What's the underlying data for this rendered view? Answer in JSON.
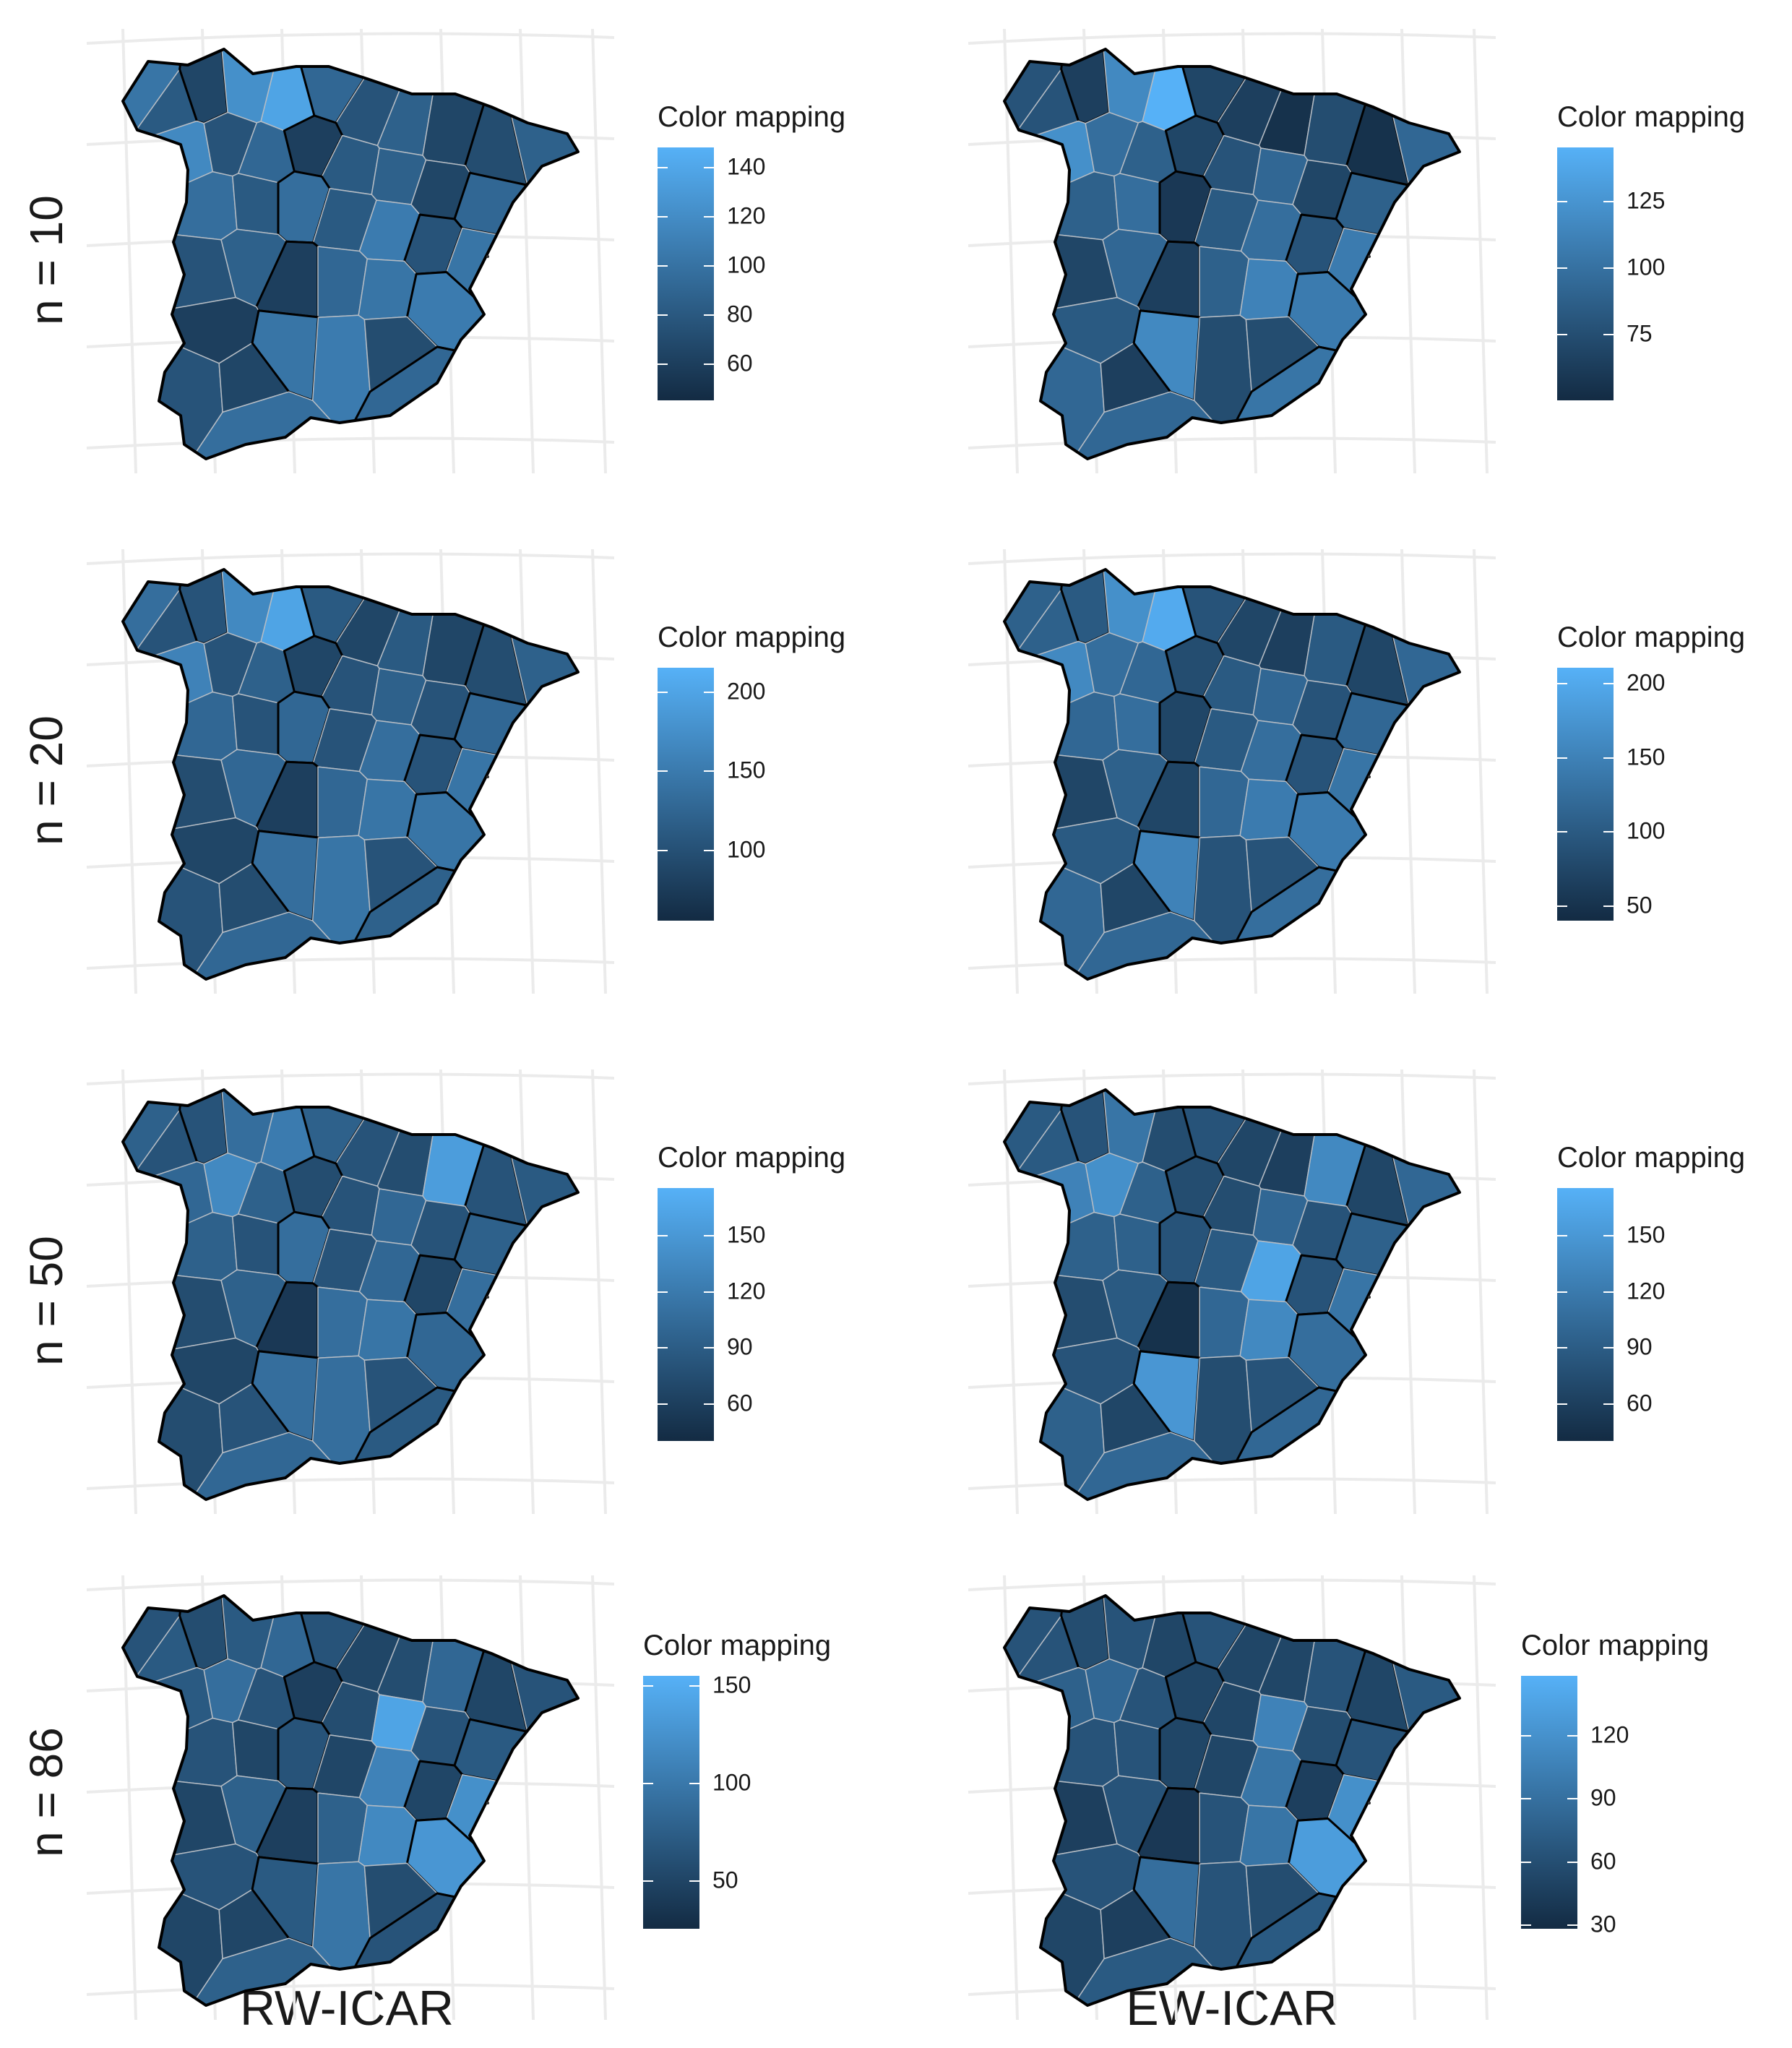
{
  "figure": {
    "row_labels": [
      "n = 10",
      "n = 20",
      "n = 50",
      "n = 86"
    ],
    "column_labels": [
      "RW-ICAR",
      "EW-ICAR"
    ]
  },
  "colors": {
    "low": "#132B43",
    "high": "#56B1F7",
    "border_dark": "#000000",
    "border_light": "#b5bcc4",
    "graticule": "#ebebeb"
  },
  "chart_data": [
    {
      "type": "heatmap",
      "model": "RW-ICAR",
      "n": 10,
      "legend_title": "Color mapping",
      "range": [
        45,
        148
      ],
      "ticks": [
        60,
        80,
        100,
        120,
        140
      ],
      "fill": [
        0.55,
        0.35,
        0.2,
        0.75,
        0.9,
        0.45,
        0.3,
        0.4,
        0.2,
        0.25,
        0.4,
        0.7,
        0.3,
        0.45,
        0.15,
        0.35,
        0.4,
        0.2,
        0.45,
        0.5,
        0.35,
        0.5,
        0.35,
        0.6,
        0.3,
        0.55,
        0.3,
        0.4,
        0.15,
        0.45,
        0.55,
        0.6,
        0.15,
        0.3,
        0.2,
        0.55,
        0.6,
        0.25,
        0.45,
        0.5
      ]
    },
    {
      "type": "heatmap",
      "model": "EW-ICAR",
      "n": 10,
      "legend_title": "Color mapping",
      "range": [
        50,
        145
      ],
      "ticks": [
        75,
        100,
        125
      ],
      "fill": [
        0.3,
        0.3,
        0.15,
        0.7,
        1.0,
        0.2,
        0.15,
        0.05,
        0.25,
        0.05,
        0.45,
        0.75,
        0.5,
        0.4,
        0.2,
        0.3,
        0.45,
        0.2,
        0.4,
        0.4,
        0.5,
        0.1,
        0.35,
        0.5,
        0.3,
        0.6,
        0.2,
        0.45,
        0.15,
        0.4,
        0.65,
        0.6,
        0.35,
        0.45,
        0.15,
        0.7,
        0.25,
        0.25,
        0.55,
        0.45
      ]
    },
    {
      "type": "heatmap",
      "model": "RW-ICAR",
      "n": 20,
      "legend_title": "Color mapping",
      "range": [
        55,
        215
      ],
      "ticks": [
        100,
        150,
        200
      ],
      "fill": [
        0.5,
        0.3,
        0.3,
        0.7,
        0.9,
        0.35,
        0.2,
        0.35,
        0.2,
        0.25,
        0.4,
        0.65,
        0.3,
        0.4,
        0.2,
        0.3,
        0.4,
        0.3,
        0.45,
        0.45,
        0.3,
        0.45,
        0.3,
        0.5,
        0.3,
        0.55,
        0.25,
        0.45,
        0.15,
        0.45,
        0.55,
        0.55,
        0.2,
        0.3,
        0.25,
        0.5,
        0.55,
        0.3,
        0.4,
        0.45
      ]
    },
    {
      "type": "heatmap",
      "model": "EW-ICAR",
      "n": 20,
      "legend_title": "Color mapping",
      "range": [
        40,
        210
      ],
      "ticks": [
        50,
        100,
        150,
        200
      ],
      "fill": [
        0.4,
        0.4,
        0.35,
        0.75,
        0.95,
        0.3,
        0.2,
        0.15,
        0.35,
        0.2,
        0.45,
        0.7,
        0.5,
        0.45,
        0.25,
        0.35,
        0.45,
        0.3,
        0.45,
        0.45,
        0.5,
        0.2,
        0.35,
        0.5,
        0.3,
        0.55,
        0.2,
        0.4,
        0.2,
        0.45,
        0.6,
        0.6,
        0.35,
        0.45,
        0.2,
        0.65,
        0.3,
        0.3,
        0.5,
        0.45
      ]
    },
    {
      "type": "heatmap",
      "model": "RW-ICAR",
      "n": 50,
      "legend_title": "Color mapping",
      "range": [
        40,
        175
      ],
      "ticks": [
        60,
        90,
        120,
        150
      ],
      "fill": [
        0.4,
        0.3,
        0.3,
        0.5,
        0.6,
        0.4,
        0.3,
        0.25,
        0.85,
        0.3,
        0.35,
        0.45,
        0.7,
        0.4,
        0.25,
        0.3,
        0.45,
        0.3,
        0.4,
        0.4,
        0.3,
        0.5,
        0.3,
        0.45,
        0.2,
        0.5,
        0.25,
        0.4,
        0.1,
        0.5,
        0.55,
        0.45,
        0.2,
        0.25,
        0.3,
        0.5,
        0.5,
        0.3,
        0.35,
        0.45
      ]
    },
    {
      "type": "heatmap",
      "model": "EW-ICAR",
      "n": 50,
      "legend_title": "Color mapping",
      "range": [
        40,
        175
      ],
      "ticks": [
        60,
        90,
        120,
        150
      ],
      "fill": [
        0.35,
        0.35,
        0.3,
        0.55,
        0.25,
        0.3,
        0.2,
        0.15,
        0.7,
        0.2,
        0.45,
        0.65,
        0.75,
        0.4,
        0.25,
        0.25,
        0.45,
        0.3,
        0.4,
        0.4,
        0.4,
        0.3,
        0.35,
        0.9,
        0.3,
        0.55,
        0.25,
        0.35,
        0.05,
        0.45,
        0.7,
        0.5,
        0.3,
        0.4,
        0.2,
        0.8,
        0.25,
        0.3,
        0.45,
        0.45
      ]
    },
    {
      "type": "heatmap",
      "model": "RW-ICAR",
      "n": 86,
      "legend_title": "Color mapping",
      "range": [
        25,
        155
      ],
      "ticks": [
        50,
        100,
        150
      ],
      "fill": [
        0.3,
        0.35,
        0.25,
        0.35,
        0.45,
        0.3,
        0.2,
        0.25,
        0.45,
        0.2,
        0.3,
        0.35,
        0.5,
        0.3,
        0.15,
        0.25,
        0.9,
        0.3,
        0.35,
        0.3,
        0.2,
        0.3,
        0.2,
        0.65,
        0.2,
        0.75,
        0.2,
        0.4,
        0.15,
        0.4,
        0.7,
        0.8,
        0.3,
        0.2,
        0.2,
        0.35,
        0.55,
        0.25,
        0.3,
        0.4
      ]
    },
    {
      "type": "heatmap",
      "model": "EW-ICAR",
      "n": 86,
      "legend_title": "Color mapping",
      "range": [
        28,
        148
      ],
      "ticks": [
        30,
        60,
        90,
        120
      ],
      "fill": [
        0.3,
        0.3,
        0.25,
        0.3,
        0.2,
        0.3,
        0.2,
        0.2,
        0.3,
        0.2,
        0.35,
        0.4,
        0.45,
        0.3,
        0.2,
        0.2,
        0.65,
        0.25,
        0.3,
        0.3,
        0.3,
        0.2,
        0.2,
        0.55,
        0.15,
        0.75,
        0.15,
        0.3,
        0.1,
        0.3,
        0.55,
        0.85,
        0.3,
        0.2,
        0.15,
        0.5,
        0.3,
        0.25,
        0.35,
        0.35
      ]
    }
  ]
}
